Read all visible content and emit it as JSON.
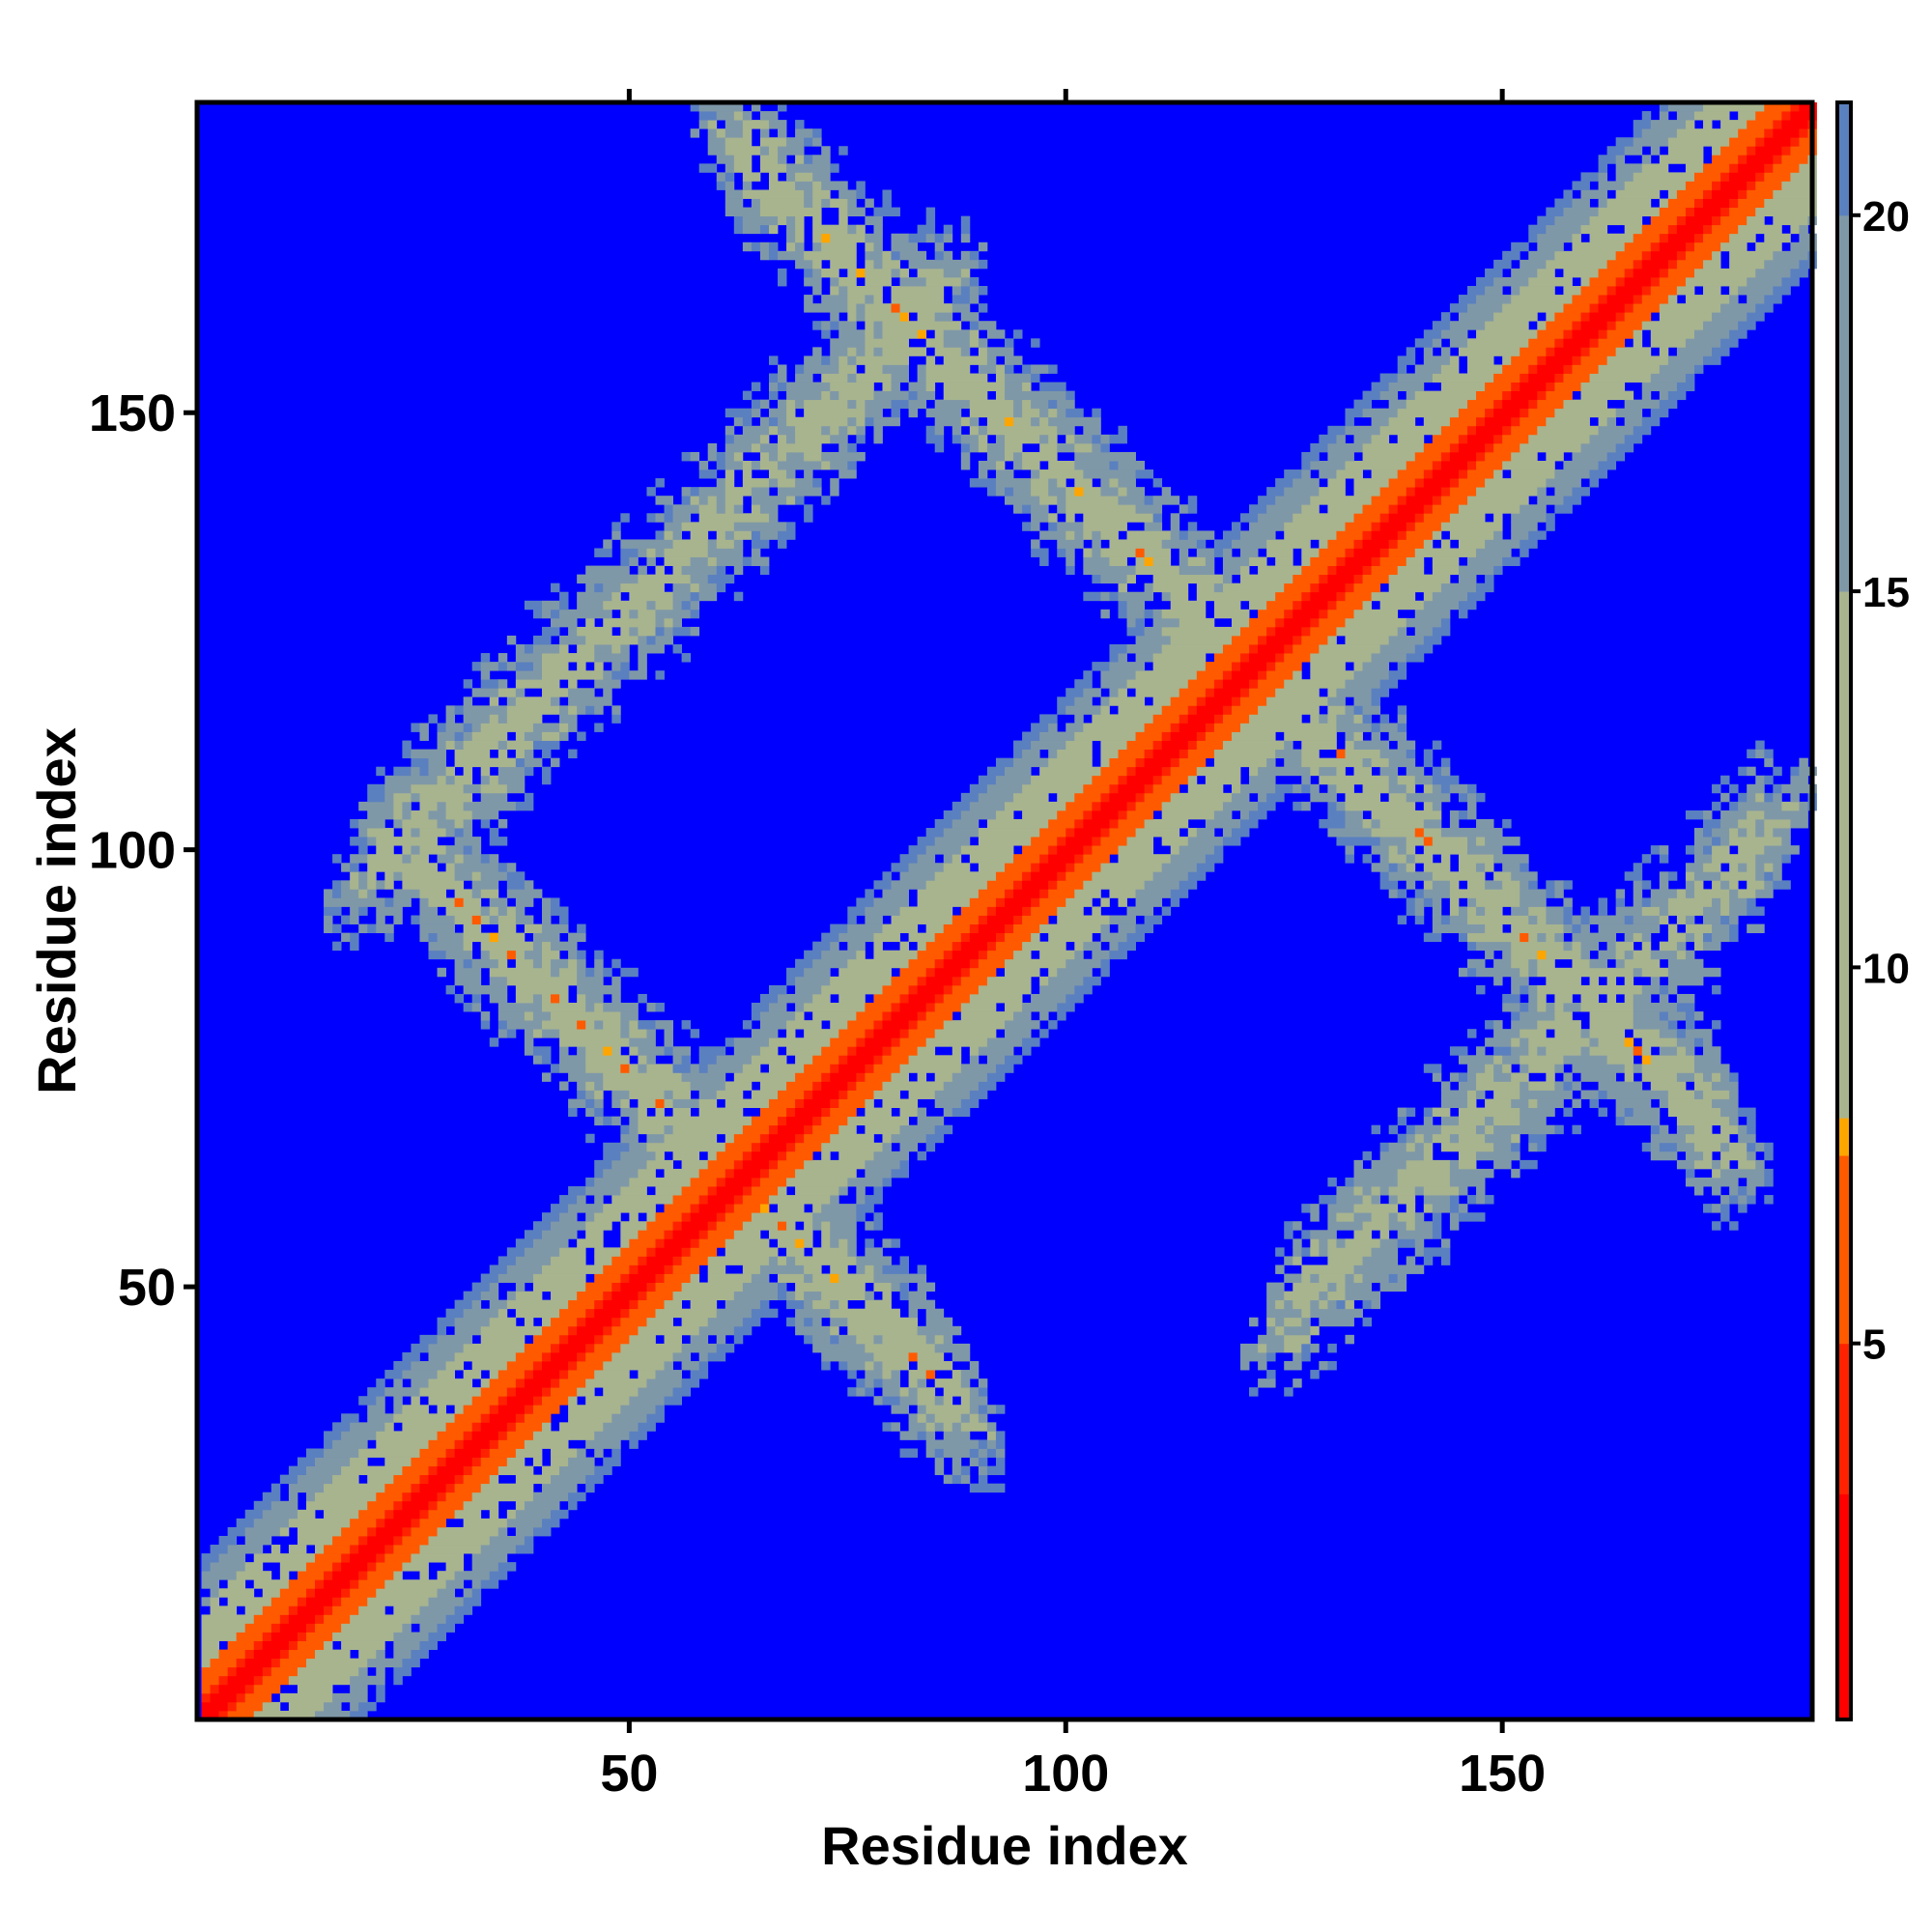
{
  "chart_data": {
    "type": "heatmap",
    "description_type": "contact distance map",
    "n_residues": 185,
    "xlabel": "Residue index",
    "ylabel": "Residue index",
    "xlim": [
      1,
      185
    ],
    "ylim": [
      1,
      185
    ],
    "x_ticks": [
      50,
      100,
      150
    ],
    "y_ticks": [
      50,
      100,
      150
    ],
    "colorbar": {
      "range": [
        0,
        21.5
      ],
      "ticks": [
        5,
        10,
        15,
        20
      ],
      "stops": [
        {
          "value": 0.0,
          "color": "#ff0000"
        },
        {
          "value": 3.0,
          "color": "#ff2200"
        },
        {
          "value": 5.0,
          "color": "#ff5a00"
        },
        {
          "value": 7.5,
          "color": "#ffa500"
        },
        {
          "value": 8.0,
          "color": "#a8b48e"
        },
        {
          "value": 10.0,
          "color": "#a8b48e"
        },
        {
          "value": 15.0,
          "color": "#7f98a8"
        },
        {
          "value": 20.0,
          "color": "#5b80bf"
        },
        {
          "value": 21.5,
          "color": "#0000ff"
        }
      ]
    },
    "background_color": "#0000ff",
    "structure": {
      "diagonal": {
        "from": [
          1,
          1
        ],
        "to": [
          185,
          185
        ]
      },
      "antiparallel_bands": [
        {
          "center_sum": 124,
          "from_x": 20,
          "to_x": 92
        },
        {
          "center_sum": 242,
          "from_x": 57,
          "to_x": 180
        },
        {
          "center_sum": 360,
          "from_x": 175,
          "to_x": 185
        }
      ],
      "parallel_bands": [
        {
          "offset": 78,
          "from_x": 15,
          "to_x": 90
        },
        {
          "offset": -78,
          "from_x": 120,
          "to_x": 185
        }
      ]
    },
    "grid": false,
    "legend": "colorbar-right"
  }
}
